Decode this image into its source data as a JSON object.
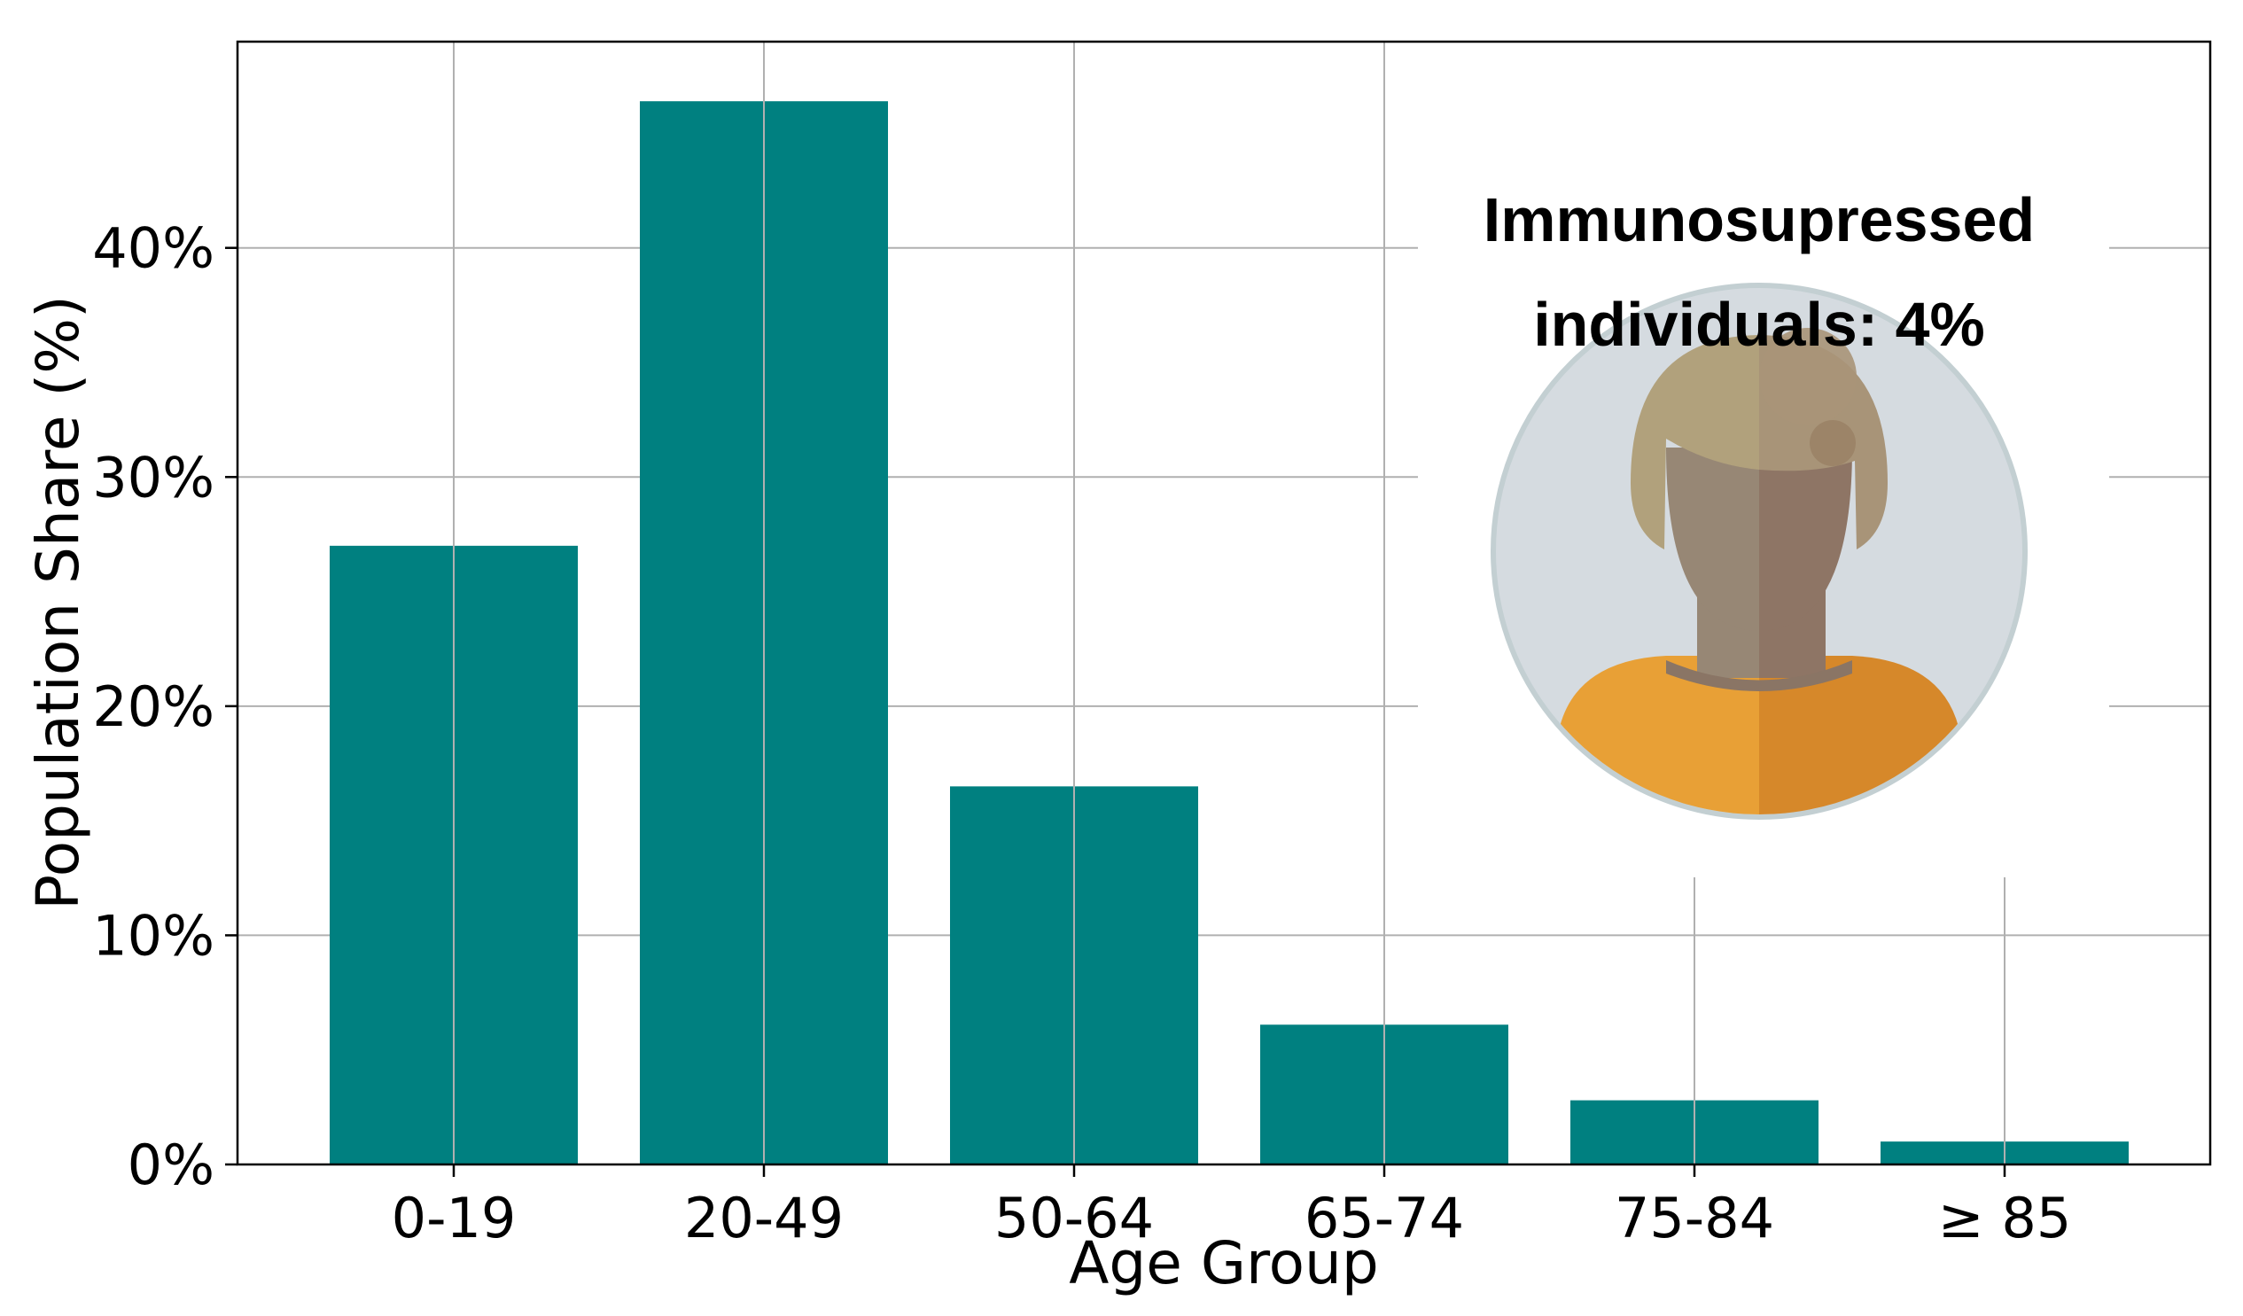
{
  "chart_data": {
    "type": "bar",
    "categories": [
      "0-19",
      "20-49",
      "50-64",
      "65-74",
      "75-84",
      "≥ 85"
    ],
    "values": [
      27.0,
      46.4,
      16.5,
      6.1,
      2.8,
      1.0
    ],
    "xlabel": "Age Group",
    "ylabel": "Population Share (%)",
    "ylim": [
      0,
      49
    ],
    "yticks": [
      0,
      10,
      20,
      30,
      40
    ],
    "ytick_labels": [
      "0%",
      "10%",
      "20%",
      "30%",
      "40%"
    ],
    "grid": true,
    "bar_color": "#008080",
    "annotation": {
      "line1": "Immunosupressed",
      "line2": "individuals: 4%",
      "value": 4,
      "icon": "person-avatar-icon"
    }
  }
}
